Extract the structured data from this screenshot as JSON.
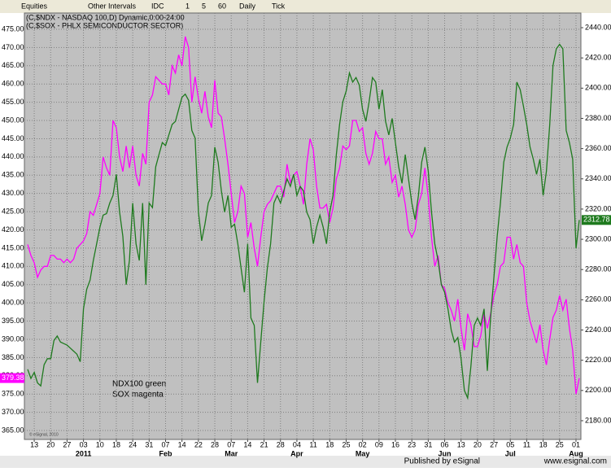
{
  "toolbar": [
    "Equities",
    "Other Intervals",
    "IDC",
    "1",
    "5",
    "60",
    "Daily",
    "Tick"
  ],
  "footer": {
    "publisher": "Published by eSignal",
    "site": "www.esignal.com"
  },
  "chart_data": {
    "type": "line",
    "title_lines": [
      "(C,$NDX - NASDAQ 100,D) Dynamic,0:00-24:00",
      "(C,$SOX - PHLX SEMICONDUCTOR SECTOR)"
    ],
    "annotation_lines": [
      "NDX100 green",
      "SOX magenta"
    ],
    "copyright": "© eSignal, 2010",
    "categories": [
      null,
      null,
      "13",
      null,
      null,
      null,
      null,
      "20",
      null,
      null,
      null,
      null,
      "27",
      null,
      null,
      null,
      null,
      "03",
      null,
      null,
      null,
      null,
      "10",
      null,
      null,
      null,
      null,
      "18",
      null,
      null,
      null,
      null,
      "24",
      null,
      null,
      null,
      null,
      "31",
      null,
      null,
      null,
      null,
      "07",
      null,
      null,
      null,
      null,
      "14",
      null,
      null,
      null,
      null,
      "22",
      null,
      null,
      null,
      null,
      "28",
      null,
      null,
      null,
      null,
      "07",
      null,
      null,
      null,
      null,
      "14",
      null,
      null,
      null,
      null,
      "21",
      null,
      null,
      null,
      null,
      "28",
      null,
      null,
      null,
      null,
      "04",
      null,
      null,
      null,
      null,
      "11",
      null,
      null,
      null,
      null,
      "18",
      null,
      null,
      null,
      null,
      "25",
      null,
      null,
      null,
      null,
      "02",
      null,
      null,
      null,
      null,
      "09",
      null,
      null,
      null,
      null,
      "16",
      null,
      null,
      null,
      null,
      "23",
      null,
      null,
      null,
      null,
      "31",
      null,
      null,
      null,
      null,
      "06",
      null,
      null,
      null,
      null,
      "13",
      null,
      null,
      null,
      null,
      "20",
      null,
      null,
      null,
      null,
      "27",
      null,
      null,
      null,
      null,
      "05",
      null,
      null,
      null,
      null,
      "11",
      null,
      null,
      null,
      null,
      "18",
      null,
      null,
      null,
      null,
      "25",
      null,
      null,
      null,
      null,
      "01",
      null
    ],
    "month_labels": [
      null,
      null,
      null,
      null,
      null,
      null,
      null,
      null,
      null,
      null,
      null,
      null,
      null,
      null,
      null,
      null,
      null,
      "2011",
      null,
      null,
      null,
      null,
      null,
      null,
      null,
      null,
      null,
      null,
      null,
      null,
      null,
      null,
      null,
      null,
      null,
      null,
      null,
      null,
      null,
      null,
      null,
      null,
      "Feb",
      null,
      null,
      null,
      null,
      null,
      null,
      null,
      null,
      null,
      null,
      null,
      null,
      null,
      null,
      null,
      null,
      null,
      null,
      null,
      "Mar",
      null,
      null,
      null,
      null,
      null,
      null,
      null,
      null,
      null,
      null,
      null,
      null,
      null,
      null,
      null,
      null,
      null,
      null,
      null,
      "Apr",
      null,
      null,
      null,
      null,
      null,
      null,
      null,
      null,
      null,
      null,
      null,
      null,
      null,
      null,
      null,
      null,
      null,
      null,
      null,
      "May",
      null,
      null,
      null,
      null,
      null,
      null,
      null,
      null,
      null,
      null,
      null,
      null,
      null,
      null,
      null,
      null,
      null,
      null,
      null,
      null,
      null,
      null,
      null,
      null,
      "Jun",
      null,
      null,
      null,
      null,
      null,
      null,
      null,
      null,
      null,
      null,
      null,
      null,
      null,
      null,
      null,
      null,
      null,
      null,
      null,
      "Jul",
      null,
      null,
      null,
      null,
      null,
      null,
      null,
      null,
      null,
      null,
      null,
      null,
      null,
      null,
      null,
      null,
      null,
      null,
      null,
      "Aug",
      null
    ],
    "series": [
      {
        "color": "#ff00ff",
        "axis": "y",
        "values": [
          416,
          413,
          411,
          407,
          409,
          410,
          410,
          413,
          413,
          412,
          412,
          411,
          412,
          411,
          412,
          415,
          416,
          417,
          419,
          425,
          424,
          427,
          430,
          440,
          437,
          435,
          450,
          448,
          440,
          436,
          443,
          437,
          443,
          435,
          432,
          441,
          438,
          455,
          457,
          462,
          461,
          460,
          460,
          457,
          465,
          463,
          468,
          465,
          473,
          470,
          455,
          462,
          456,
          452,
          458,
          451,
          448,
          461,
          452,
          451,
          445,
          438,
          430,
          422,
          425,
          432,
          430,
          418,
          422,
          415,
          410,
          418,
          425,
          427,
          428,
          430,
          432,
          432,
          429,
          438,
          433,
          435,
          436,
          432,
          427,
          438,
          445,
          442,
          432,
          426,
          426,
          427,
          422,
          426,
          434,
          437,
          443,
          442,
          443,
          450,
          450,
          447,
          448,
          441,
          438,
          441,
          447,
          445,
          445,
          438,
          440,
          433,
          435,
          429,
          432,
          427,
          420,
          418,
          420,
          427,
          430,
          437,
          429,
          418,
          410,
          413,
          405,
          404,
          400,
          398,
          395,
          401,
          393,
          387,
          397,
          394,
          388,
          388,
          391,
          397,
          393,
          397,
          402,
          405,
          410,
          411,
          418,
          418,
          412,
          416,
          411,
          410,
          400,
          395,
          392,
          389,
          394,
          387,
          383,
          390,
          396,
          398,
          402,
          398,
          401,
          393,
          387,
          375,
          379.38
        ]
      },
      {
        "color": "#1e7a1e",
        "axis": "y2",
        "values": [
          2214,
          2208,
          2212,
          2205,
          2203,
          2217,
          2221,
          2221,
          2233,
          2236,
          2232,
          2231,
          2230,
          2228,
          2226,
          2224,
          2219,
          2254,
          2267,
          2273,
          2286,
          2297,
          2308,
          2316,
          2317,
          2324,
          2329,
          2343,
          2318,
          2302,
          2270,
          2286,
          2324,
          2297,
          2286,
          2324,
          2270,
          2324,
          2321,
          2348,
          2356,
          2364,
          2362,
          2369,
          2376,
          2378,
          2386,
          2394,
          2396,
          2392,
          2372,
          2367,
          2318,
          2299,
          2310,
          2324,
          2329,
          2361,
          2351,
          2332,
          2318,
          2329,
          2308,
          2310,
          2297,
          2281,
          2265,
          2297,
          2248,
          2243,
          2205,
          2232,
          2259,
          2281,
          2297,
          2324,
          2329,
          2324,
          2332,
          2340,
          2335,
          2343,
          2329,
          2335,
          2332,
          2318,
          2313,
          2297,
          2308,
          2316,
          2308,
          2297,
          2318,
          2329,
          2356,
          2376,
          2391,
          2398,
          2410,
          2404,
          2407,
          2402,
          2386,
          2378,
          2391,
          2407,
          2404,
          2386,
          2399,
          2378,
          2369,
          2380,
          2364,
          2348,
          2337,
          2356,
          2340,
          2324,
          2313,
          2329,
          2351,
          2361,
          2345,
          2318,
          2297,
          2286,
          2270,
          2265,
          2254,
          2240,
          2232,
          2235,
          2221,
          2200,
          2195,
          2216,
          2243,
          2248,
          2243,
          2254,
          2213,
          2248,
          2275,
          2302,
          2324,
          2351,
          2361,
          2367,
          2376,
          2404,
          2399,
          2388,
          2376,
          2361,
          2353,
          2343,
          2353,
          2329,
          2345,
          2376,
          2415,
          2426,
          2429,
          2426,
          2372,
          2364,
          2353,
          2294,
          2312.78
        ]
      }
    ],
    "ylim": [
      362.55,
      479.46
    ],
    "yticks": [
      {
        "value": 365,
        "label": "365.00"
      },
      {
        "value": 370,
        "label": "370.00"
      },
      {
        "value": 375,
        "label": "375.00"
      },
      {
        "value": 380,
        "label": "380.00"
      },
      {
        "value": 385,
        "label": "385.00"
      },
      {
        "value": 390,
        "label": "390.00"
      },
      {
        "value": 395,
        "label": "395.00"
      },
      {
        "value": 400,
        "label": "400.00"
      },
      {
        "value": 405,
        "label": "405.00"
      },
      {
        "value": 410,
        "label": "410.00"
      },
      {
        "value": 415,
        "label": "415.00"
      },
      {
        "value": 420,
        "label": "420.00"
      },
      {
        "value": 425,
        "label": "425.00"
      },
      {
        "value": 430,
        "label": "430.00"
      },
      {
        "value": 435,
        "label": "435.00"
      },
      {
        "value": 440,
        "label": "440.00"
      },
      {
        "value": 445,
        "label": "445.00"
      },
      {
        "value": 450,
        "label": "450.00"
      },
      {
        "value": 455,
        "label": "455.00"
      },
      {
        "value": 460,
        "label": "460.00"
      },
      {
        "value": 465,
        "label": "465.00"
      },
      {
        "value": 470,
        "label": "470.00"
      },
      {
        "value": 475,
        "label": "475.00"
      }
    ],
    "y2lim": [
      2167.6,
      2449.7
    ],
    "y2ticks": [
      {
        "value": 2180,
        "label": "2180.00"
      },
      {
        "value": 2200,
        "label": "2200.00"
      },
      {
        "value": 2220,
        "label": "2220.00"
      },
      {
        "value": 2240,
        "label": "2240.00"
      },
      {
        "value": 2260,
        "label": "2260.00"
      },
      {
        "value": 2280,
        "label": "2280.00"
      },
      {
        "value": 2300,
        "label": "2300.00"
      },
      {
        "value": 2320,
        "label": "2320.00"
      },
      {
        "value": 2340,
        "label": "2340.00"
      },
      {
        "value": 2360,
        "label": "2360.00"
      },
      {
        "value": 2380,
        "label": "2380.00"
      },
      {
        "value": 2400,
        "label": "2400.00"
      },
      {
        "value": 2420,
        "label": "2420.00"
      },
      {
        "value": 2440,
        "label": "2440.00"
      }
    ],
    "grid": true
  }
}
